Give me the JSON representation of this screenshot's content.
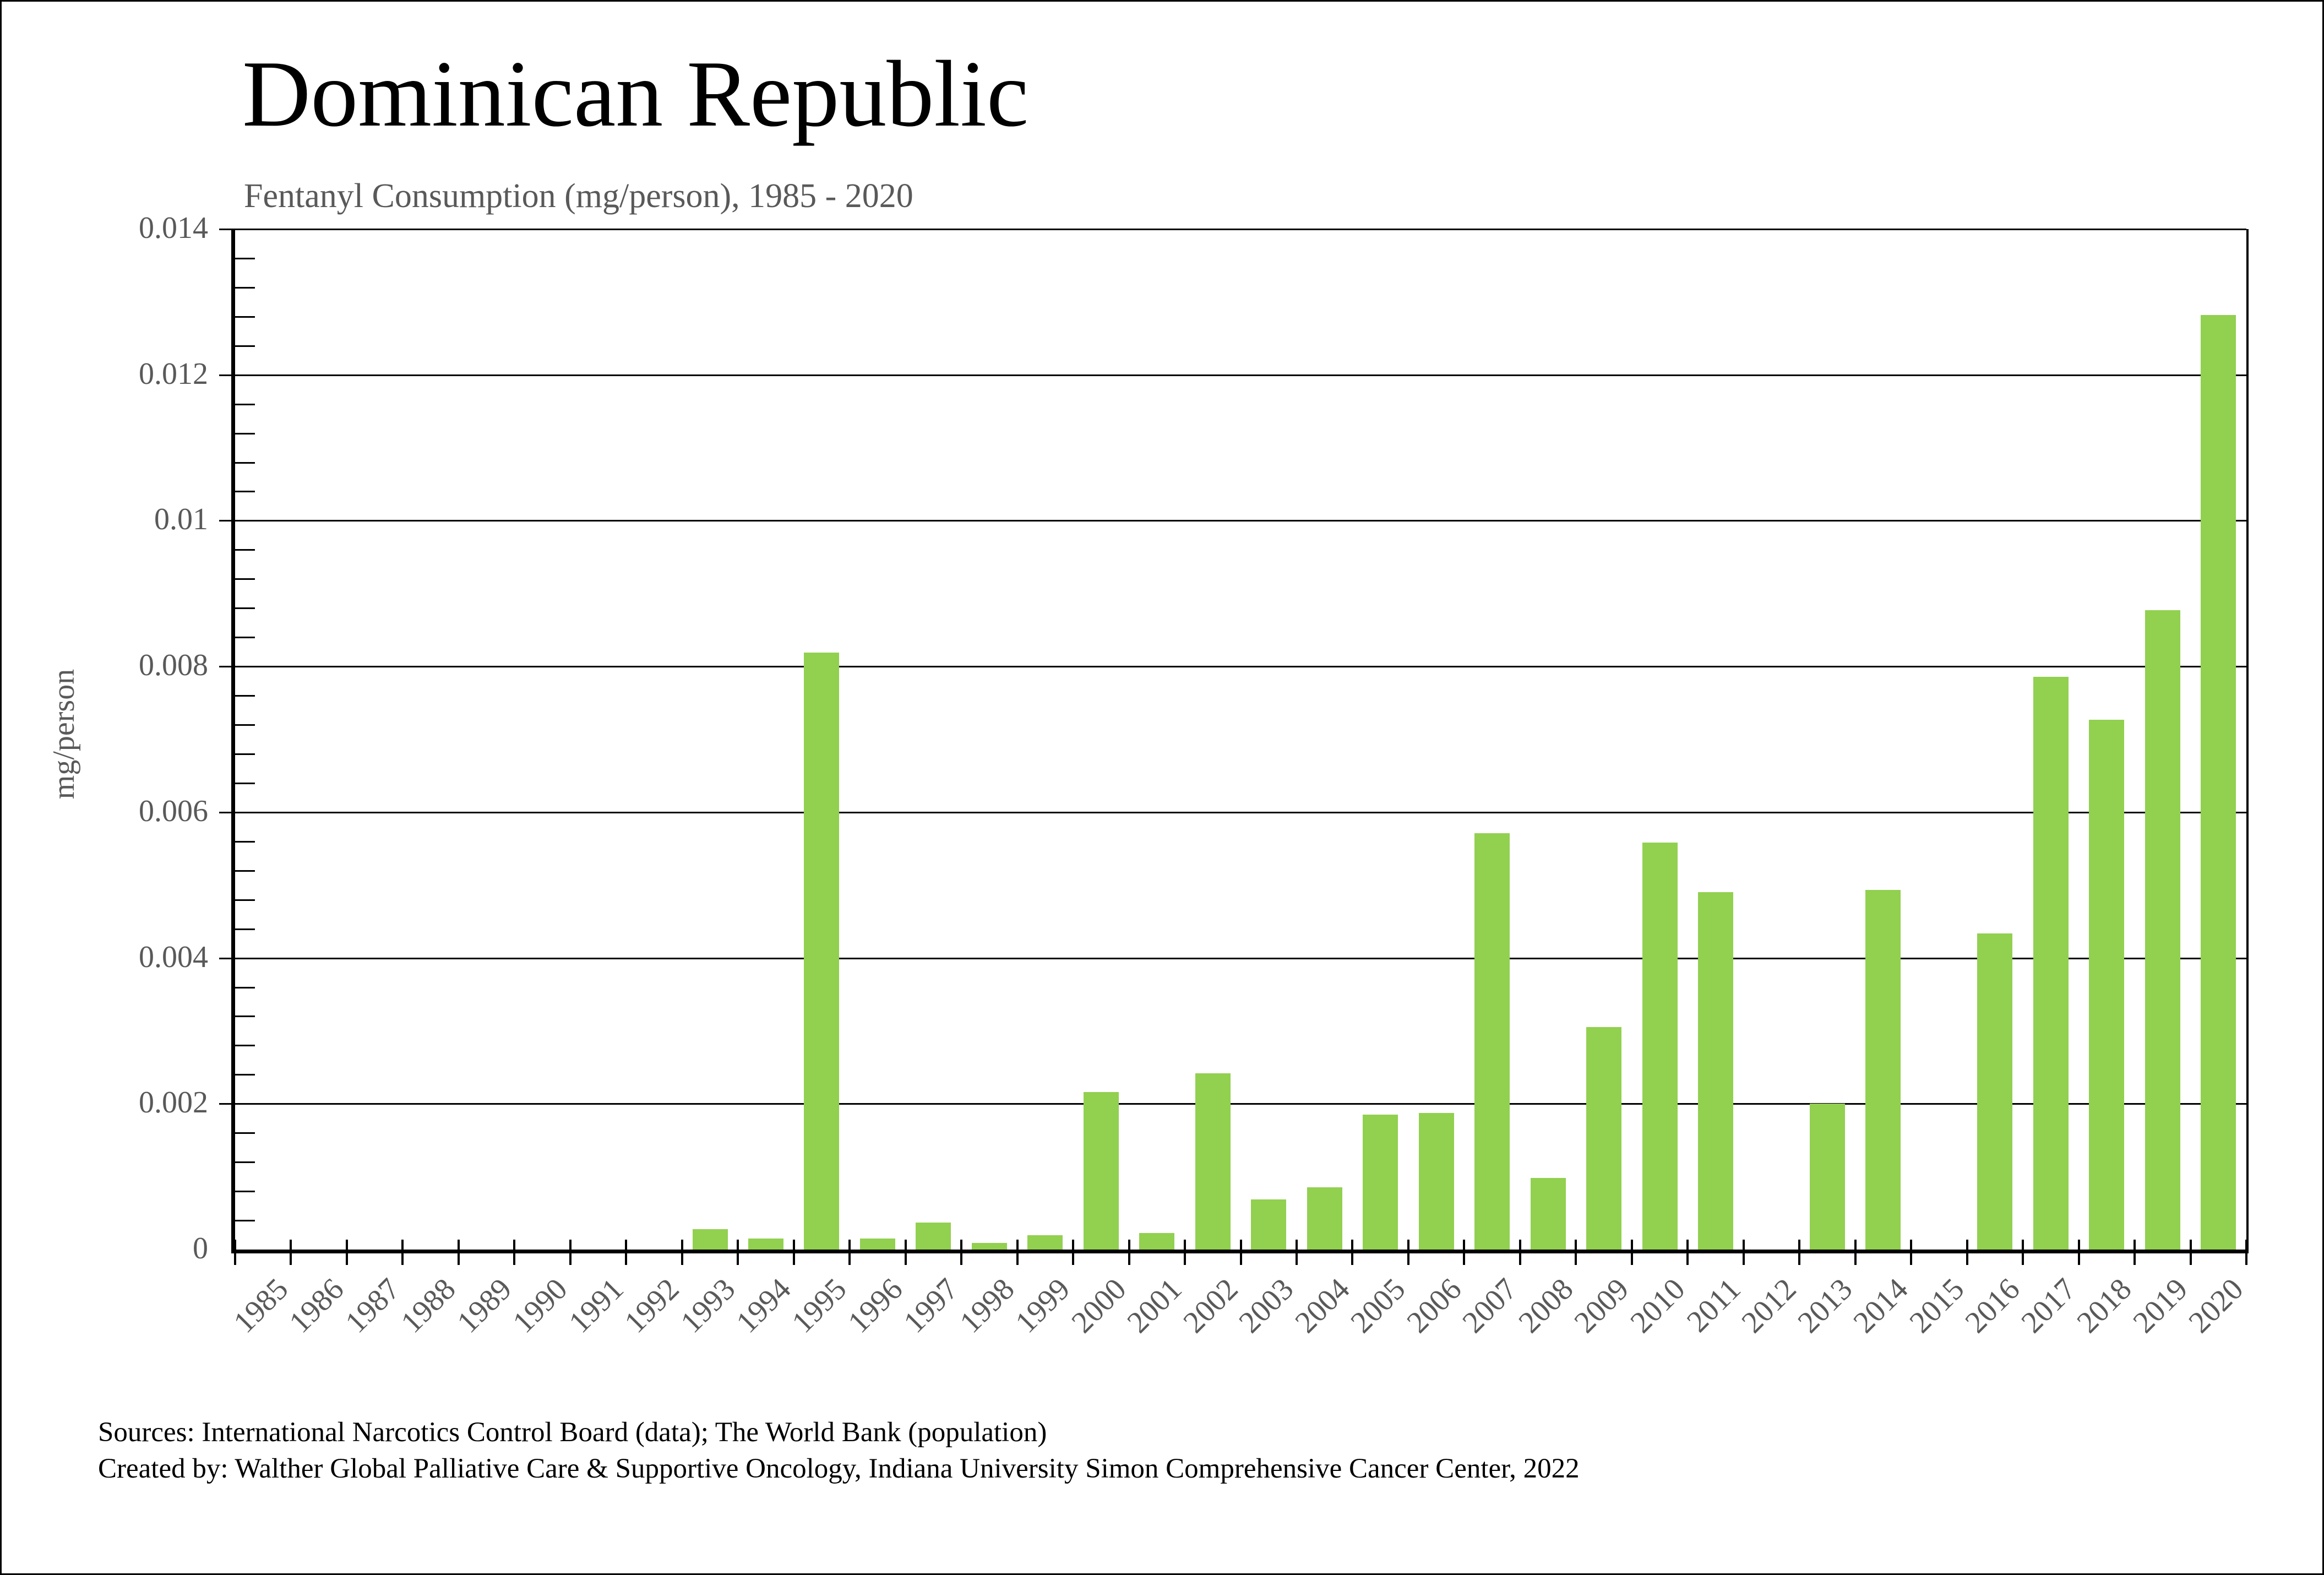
{
  "header": {
    "title": "Dominican Republic",
    "subtitle": "Fentanyl Consumption (mg/person), 1985 - 2020"
  },
  "chart_data": {
    "type": "bar",
    "title": "Dominican Republic",
    "subtitle": "Fentanyl Consumption (mg/person), 1985 - 2020",
    "xlabel": "",
    "ylabel": "mg/person",
    "ylim": [
      0,
      0.014
    ],
    "y_major_step": 0.002,
    "y_minor_step": 0.0004,
    "y_tick_labels": [
      "0",
      "0.002",
      "0.004",
      "0.006",
      "0.008",
      "0.01",
      "0.012",
      "0.014"
    ],
    "grid": "horizontal-major",
    "legend": "none",
    "bar_color": "#92D050",
    "categories": [
      "1985",
      "1986",
      "1987",
      "1988",
      "1989",
      "1990",
      "1991",
      "1992",
      "1993",
      "1994",
      "1995",
      "1996",
      "1997",
      "1998",
      "1999",
      "2000",
      "2001",
      "2002",
      "2003",
      "2004",
      "2005",
      "2006",
      "2007",
      "2008",
      "2009",
      "2010",
      "2011",
      "2012",
      "2013",
      "2014",
      "2015",
      "2016",
      "2017",
      "2018",
      "2019",
      "2020"
    ],
    "values": [
      0,
      0,
      0,
      0,
      0,
      0,
      0,
      0,
      0.00028,
      0.00015,
      0.00819,
      0.00015,
      0.00037,
      9e-05,
      0.0002,
      0.00216,
      0.00023,
      0.00242,
      0.00069,
      0.00085,
      0.00185,
      0.00187,
      0.00571,
      0.00098,
      0.00305,
      0.00558,
      0.0049,
      0,
      0.002,
      0.00493,
      0,
      0.00434,
      0.00786,
      0.00727,
      0.00877,
      0.01282
    ]
  },
  "footer": {
    "sources_line1": "Sources: International Narcotics Control Board (data); The World Bank (population)",
    "sources_line2": "Created by: Walther Global Palliative Care & Supportive Oncology, Indiana University Simon Comprehensive Cancer Center, 2022"
  },
  "colors": {
    "bar_green": "#92D050",
    "label_gray": "#595959",
    "axis_black": "#000000",
    "background": "#FFFFFF"
  }
}
